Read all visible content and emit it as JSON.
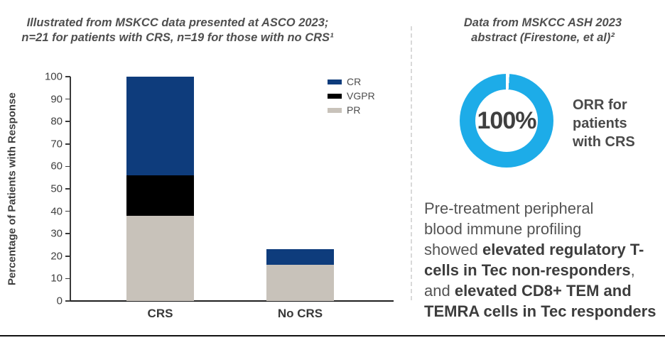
{
  "left": {
    "title_line1": "Illustrated from MSKCC data presented at ASCO 2023;",
    "title_line2": "n=21 for patients with CRS, n=19 for those with no CRS¹"
  },
  "right": {
    "title_line1": "Data from MSKCC ASH 2023",
    "title_line2": "abstract (Firestone, et al)²",
    "donut": {
      "value_label": "100%",
      "percent": 100,
      "color": "#1dace8",
      "label": "ORR for patients with CRS"
    },
    "finding_lines": [
      [
        {
          "text": "Pre-treatment peripheral",
          "bold": false
        }
      ],
      [
        {
          "text": "blood immune profiling",
          "bold": false
        }
      ],
      [
        {
          "text": "showed ",
          "bold": false
        },
        {
          "text": "elevated regulatory T-",
          "bold": true
        }
      ],
      [
        {
          "text": "cells in Tec non-responders",
          "bold": true
        },
        {
          "text": ",",
          "bold": false
        }
      ],
      [
        {
          "text": "and ",
          "bold": false
        },
        {
          "text": "elevated CD8+ TEM and",
          "bold": true
        }
      ],
      [
        {
          "text": "TEMRA cells in Tec responders",
          "bold": true
        }
      ]
    ]
  },
  "chart_data": {
    "type": "bar",
    "stacked": true,
    "categories": [
      "CRS",
      "No CRS"
    ],
    "series": [
      {
        "name": "CR",
        "color": "#0e3c7c",
        "values": [
          44,
          7
        ]
      },
      {
        "name": "VGPR",
        "color": "#000000",
        "values": [
          18,
          0
        ]
      },
      {
        "name": "PR",
        "color": "#c8c2ba",
        "values": [
          38,
          16
        ]
      }
    ],
    "title": "",
    "xlabel": "",
    "ylabel": "Percentage of Patients with Response",
    "ylim": [
      0,
      100
    ],
    "yticks": [
      0,
      10,
      20,
      30,
      40,
      50,
      60,
      70,
      80,
      90,
      100
    ],
    "grid": false,
    "legend_position": "top-right"
  }
}
